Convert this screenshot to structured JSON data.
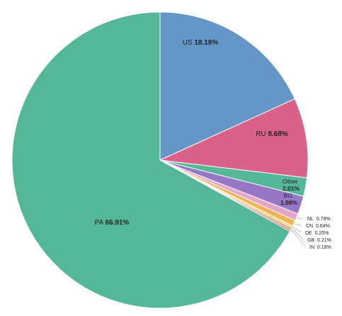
{
  "chart_data": {
    "type": "pie",
    "title": "",
    "slices": [
      {
        "label": "US",
        "value": 18.18,
        "value_text": "18.18%",
        "color": "#6497c8"
      },
      {
        "label": "RU",
        "value": 8.68,
        "value_text": "8.68%",
        "color": "#da628a"
      },
      {
        "label": "Other",
        "value": 2.01,
        "value_text": "2.01%",
        "color": "#54b898"
      },
      {
        "label": "BG",
        "value": 1.98,
        "value_text": "1.98%",
        "color": "#9577c5"
      },
      {
        "label": "NL",
        "value": 0.78,
        "value_text": "0.78%",
        "color": "#e4a5c8"
      },
      {
        "label": "CN",
        "value": 0.64,
        "value_text": "0.64%",
        "color": "#f0b457"
      },
      {
        "label": "DE",
        "value": 0.25,
        "value_text": "0.25%",
        "color": "#e3d86a"
      },
      {
        "label": "GB",
        "value": 0.21,
        "value_text": "0.21%",
        "color": "#e68b58"
      },
      {
        "label": "IN",
        "value": 0.18,
        "value_text": "0.18%",
        "color": "#e05a5a"
      },
      {
        "label": "PA",
        "value": 66.91,
        "value_text": "66.91%",
        "color": "#54b898"
      }
    ]
  }
}
